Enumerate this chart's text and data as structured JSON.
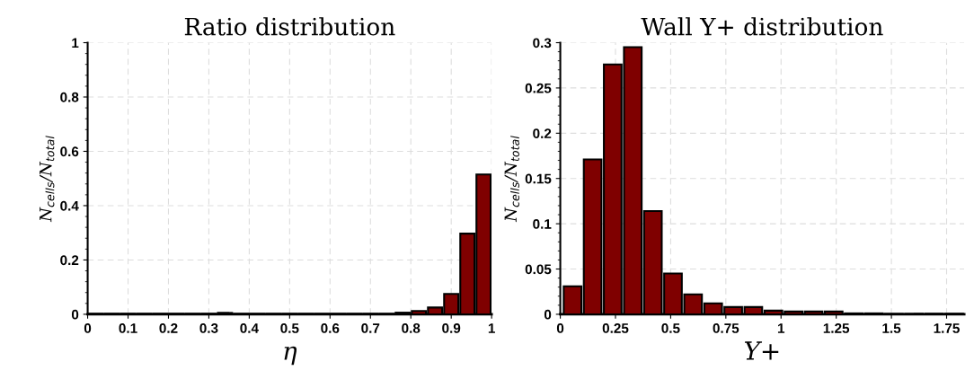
{
  "chart_data": [
    {
      "type": "histogram",
      "title": "Ratio distribution",
      "xlabel": "η",
      "ylabel": "N$_{cells}$/N$_{total}$",
      "color": "#7f0000",
      "bins": [
        0,
        0.04,
        0.08,
        0.12,
        0.16,
        0.2,
        0.24,
        0.28,
        0.32,
        0.36,
        0.4,
        0.44,
        0.48,
        0.52,
        0.56,
        0.6,
        0.64,
        0.68,
        0.72,
        0.76,
        0.8,
        0.84,
        0.88,
        0.92,
        0.96,
        1
      ],
      "values": [
        0.002,
        0.002,
        0.002,
        0.002,
        0.002,
        0.002,
        0.002,
        0.002,
        0.005,
        0.002,
        0.002,
        0.002,
        0.002,
        0.002,
        0.002,
        0.002,
        0.002,
        0.002,
        0.002,
        0.006,
        0.012,
        0.025,
        0.075,
        0.297,
        0.515
      ],
      "xlim": [
        0,
        1
      ],
      "xticks": [
        0,
        0.1,
        0.2,
        0.3,
        0.4,
        0.5,
        0.6,
        0.7,
        0.8,
        0.9,
        1
      ],
      "ylim": [
        0,
        1
      ],
      "yticks": [
        0,
        0.2,
        0.4,
        0.6,
        0.8,
        1
      ],
      "grid": true
    },
    {
      "type": "histogram",
      "title": "Wall Y+ distribution",
      "xlabel": "Y+",
      "ylabel": "N$_{cells}$/N$_{total}$",
      "color": "#7f0000",
      "bins": [
        0.01,
        0.101,
        0.192,
        0.283,
        0.374,
        0.465,
        0.556,
        0.647,
        0.738,
        0.829,
        0.92,
        1.011,
        1.102,
        1.193,
        1.284,
        1.375,
        1.466,
        1.557,
        1.648,
        1.739,
        1.83
      ],
      "values": [
        0.031,
        0.171,
        0.276,
        0.295,
        0.114,
        0.045,
        0.022,
        0.012,
        0.008,
        0.008,
        0.004,
        0.003,
        0.003,
        0.003,
        0.001,
        0.001,
        0.0005,
        0.0005,
        0.0005,
        0.0005
      ],
      "xlim": [
        0,
        1.83
      ],
      "xticks": [
        0,
        0.25,
        0.5,
        0.75,
        1,
        1.25,
        1.5,
        1.75
      ],
      "ylim": [
        0,
        0.3
      ],
      "yticks": [
        0,
        0.05,
        0.1,
        0.15,
        0.2,
        0.25,
        0.3
      ],
      "grid": true
    }
  ]
}
